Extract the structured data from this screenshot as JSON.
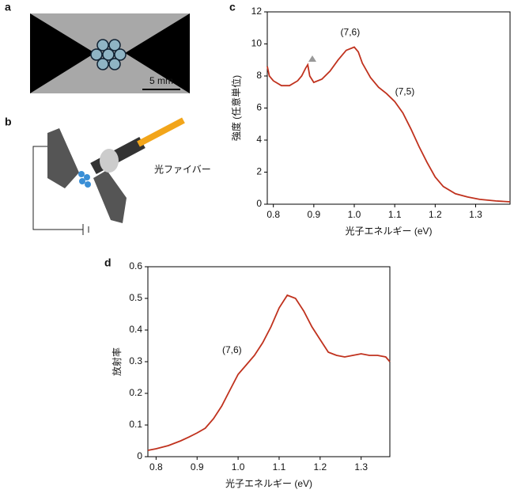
{
  "panels": [
    "a",
    "b",
    "c",
    "d"
  ],
  "photo": {
    "scale_label": "5 mm"
  },
  "diagram": {
    "fiber_label": "光ファイバー"
  },
  "chart_data": [
    {
      "type": "line",
      "xlabel": "光子エネルギー (eV)",
      "ylabel": "強度 (任意単位)",
      "x": [
        0.785,
        0.79,
        0.8,
        0.82,
        0.84,
        0.86,
        0.87,
        0.88,
        0.885,
        0.89,
        0.9,
        0.92,
        0.94,
        0.96,
        0.98,
        1.0,
        1.01,
        1.02,
        1.04,
        1.06,
        1.08,
        1.1,
        1.12,
        1.14,
        1.16,
        1.18,
        1.2,
        1.22,
        1.25,
        1.28,
        1.31,
        1.35,
        1.385
      ],
      "values": [
        8.6,
        8.0,
        7.7,
        7.4,
        7.4,
        7.7,
        8.0,
        8.5,
        8.7,
        8.0,
        7.6,
        7.8,
        8.3,
        9.0,
        9.6,
        9.8,
        9.5,
        8.8,
        7.9,
        7.3,
        6.9,
        6.4,
        5.7,
        4.7,
        3.6,
        2.6,
        1.7,
        1.1,
        0.65,
        0.45,
        0.3,
        0.2,
        0.15
      ],
      "color": "#c0321e",
      "xlim": [
        0.785,
        1.385
      ],
      "xticks": [
        0.8,
        0.9,
        {
          "value": 1,
          "label": "1.0"
        },
        1.1,
        1.2,
        1.3
      ],
      "ylim": [
        0,
        12
      ],
      "yticks": [
        0,
        2,
        4,
        6,
        8,
        10,
        12
      ],
      "annotations": [
        {
          "text": "(7,6)",
          "x": 0.99,
          "y": 10.7
        },
        {
          "text": "(7,5)",
          "x": 1.125,
          "y": 7
        }
      ]
    },
    {
      "type": "line",
      "xlabel": "光子エネルギー (eV)",
      "ylabel": "放射率",
      "x": [
        0.78,
        0.8,
        0.83,
        0.86,
        0.88,
        0.9,
        0.92,
        0.94,
        0.96,
        0.98,
        1.0,
        1.02,
        1.04,
        1.06,
        1.08,
        1.1,
        1.12,
        1.14,
        1.16,
        1.18,
        1.2,
        1.22,
        1.24,
        1.26,
        1.28,
        1.3,
        1.32,
        1.34,
        1.36,
        1.37
      ],
      "values": [
        0.02,
        0.025,
        0.035,
        0.05,
        0.062,
        0.075,
        0.09,
        0.12,
        0.16,
        0.21,
        0.26,
        0.29,
        0.32,
        0.36,
        0.41,
        0.47,
        0.51,
        0.5,
        0.46,
        0.41,
        0.37,
        0.33,
        0.32,
        0.315,
        0.32,
        0.325,
        0.32,
        0.32,
        0.315,
        0.3
      ],
      "color": "#c0321e",
      "xlim": [
        0.78,
        1.37
      ],
      "xticks": [
        0.8,
        0.9,
        {
          "value": 1,
          "label": "1.0"
        },
        1.1,
        1.2,
        1.3
      ],
      "ylim": [
        0,
        0.6
      ],
      "yticks": [
        0,
        0.1,
        0.2,
        0.3,
        0.4,
        0.5,
        0.6
      ],
      "annotations": [
        {
          "text": "(7,6)",
          "x": 0.985,
          "y": 0.335
        }
      ]
    }
  ]
}
